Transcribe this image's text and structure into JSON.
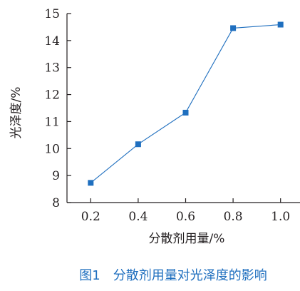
{
  "chart_data": {
    "type": "line",
    "title": "",
    "caption": "图1　分散剂用量对光泽度的影响",
    "xlabel": "分散剂用量/%",
    "ylabel": "光泽度/%",
    "x": [
      0.2,
      0.4,
      0.6,
      0.8,
      1.0
    ],
    "x_tick_labels": [
      "0.2",
      "0.4",
      "0.6",
      "0.8",
      "1.0"
    ],
    "y_ticks": [
      8,
      9,
      10,
      11,
      12,
      13,
      14,
      15
    ],
    "y_tick_labels": [
      "8",
      "9",
      "10",
      "11",
      "12",
      "13",
      "14",
      "15"
    ],
    "series": [
      {
        "values": [
          8.73,
          10.16,
          11.33,
          14.46,
          14.59
        ]
      }
    ],
    "xlim": [
      0.1,
      1.1
    ],
    "ylim": [
      8,
      15
    ],
    "grid": false,
    "marker": "square",
    "colors": {
      "line": "#1f6fbf",
      "marker": "#1f6fbf",
      "axis": "#231f20",
      "caption": "#1f6fbf"
    }
  }
}
